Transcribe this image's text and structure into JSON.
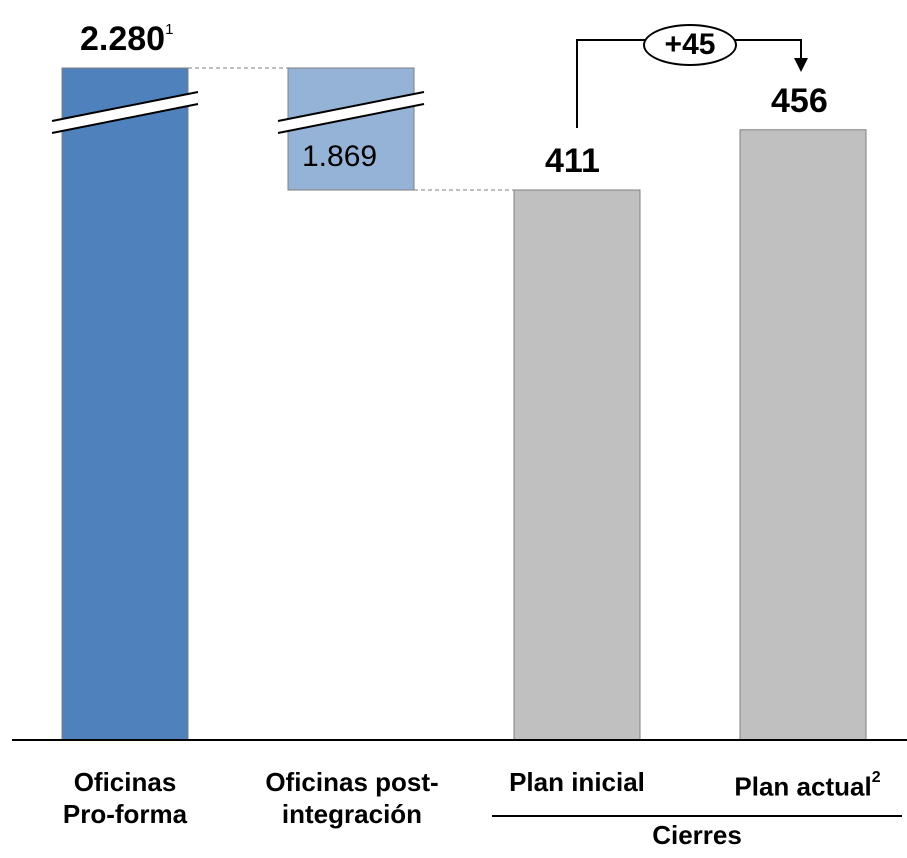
{
  "chart_data": {
    "type": "bar",
    "categories": [
      {
        "line1": "Oficinas",
        "line2": "Pro-forma"
      },
      {
        "line1": "Oficinas post-",
        "line2": "integración"
      },
      {
        "line1": "Plan inicial",
        "line2": ""
      },
      {
        "line1": "Plan actual",
        "line2": "",
        "footnote": "2"
      }
    ],
    "values": [
      2280,
      1869,
      411,
      456
    ],
    "value_labels": [
      "2.280",
      "1.869",
      "411",
      "456"
    ],
    "value_footnotes": [
      "1",
      "",
      "",
      ""
    ],
    "group": {
      "label": "Cierres",
      "categories": [
        "Plan inicial",
        "Plan actual"
      ]
    },
    "delta": {
      "label": "+45",
      "from": "Plan inicial",
      "to": "Plan actual"
    },
    "axis_break": true,
    "colors": {
      "bar1": "#4f81bd",
      "bar2": "#95b3d7",
      "bar3": "#c0c0c0",
      "bar4": "#c0c0c0",
      "bar_stroke": "#7f7f7f",
      "connector": "#7f7f7f"
    }
  }
}
